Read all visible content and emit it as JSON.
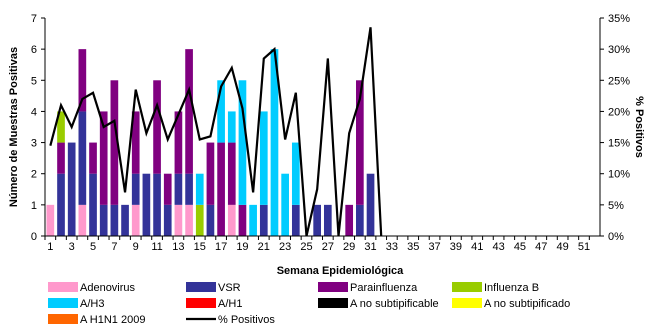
{
  "chart_data": {
    "type": "bar",
    "stacked": true,
    "xlabel": "Semana Epidemiológica",
    "ylabel": "Número de Muestras Positivas",
    "y2label": "% Positivos",
    "ylim": [
      0,
      7
    ],
    "yticks": [
      0,
      1,
      2,
      3,
      4,
      5,
      6,
      7
    ],
    "y2lim": [
      0,
      35
    ],
    "y2ticks": [
      "0%",
      "5%",
      "10%",
      "15%",
      "20%",
      "25%",
      "30%",
      "35%"
    ],
    "x": [
      1,
      2,
      3,
      4,
      5,
      6,
      7,
      8,
      9,
      10,
      11,
      12,
      13,
      14,
      15,
      16,
      17,
      18,
      19,
      20,
      21,
      22,
      23,
      24,
      25,
      26,
      27,
      28,
      29,
      30,
      31,
      32,
      33,
      34,
      35,
      36,
      37,
      38,
      39,
      40,
      41,
      42,
      43,
      44,
      45,
      46,
      47,
      48,
      49,
      50,
      51,
      52
    ],
    "xticks": [
      1,
      3,
      5,
      7,
      9,
      11,
      13,
      15,
      17,
      19,
      21,
      23,
      25,
      27,
      29,
      31,
      33,
      35,
      37,
      39,
      41,
      43,
      45,
      47,
      49,
      51
    ],
    "grid": false,
    "legend_position": "bottom",
    "series": [
      {
        "name": "Adenovirus",
        "color": "#ff99cc",
        "values": [
          1,
          0,
          0,
          1,
          0,
          0,
          0,
          0,
          1,
          0,
          0,
          0,
          1,
          1,
          0,
          0,
          0,
          1,
          0,
          0,
          0,
          0,
          0,
          0,
          0,
          0,
          0,
          0,
          0,
          0,
          0,
          0,
          0,
          0,
          0,
          0,
          0,
          0,
          0,
          0,
          0,
          0,
          0,
          0,
          0,
          0,
          0,
          0,
          0,
          0,
          0,
          0
        ]
      },
      {
        "name": "VSR",
        "color": "#333399",
        "values": [
          0,
          2,
          3,
          3,
          2,
          1,
          1,
          1,
          1,
          2,
          2,
          1,
          1,
          1,
          0,
          1,
          0,
          0,
          0,
          0,
          1,
          0,
          0,
          1,
          0,
          1,
          1,
          0,
          0,
          1,
          2,
          0,
          0,
          0,
          0,
          0,
          0,
          0,
          0,
          0,
          0,
          0,
          0,
          0,
          0,
          0,
          0,
          0,
          0,
          0,
          0,
          0
        ]
      },
      {
        "name": "Parainfluenza",
        "color": "#800080",
        "values": [
          0,
          1,
          0,
          2,
          1,
          3,
          4,
          0,
          2,
          0,
          3,
          1,
          2,
          4,
          0,
          2,
          3,
          2,
          1,
          0,
          0,
          0,
          0,
          0,
          0,
          0,
          0,
          0,
          1,
          4,
          0,
          0,
          0,
          0,
          0,
          0,
          0,
          0,
          0,
          0,
          0,
          0,
          0,
          0,
          0,
          0,
          0,
          0,
          0,
          0,
          0,
          0
        ]
      },
      {
        "name": "Influenza  B",
        "color": "#99cc00",
        "values": [
          0,
          1,
          0,
          0,
          0,
          0,
          0,
          0,
          0,
          0,
          0,
          0,
          0,
          0,
          1,
          0,
          0,
          0,
          0,
          0,
          0,
          0,
          0,
          0,
          0,
          0,
          0,
          0,
          0,
          0,
          0,
          0,
          0,
          0,
          0,
          0,
          0,
          0,
          0,
          0,
          0,
          0,
          0,
          0,
          0,
          0,
          0,
          0,
          0,
          0,
          0,
          0
        ]
      },
      {
        "name": "A/H3",
        "color": "#00ccff",
        "values": [
          0,
          0,
          0,
          0,
          0,
          0,
          0,
          0,
          0,
          0,
          0,
          0,
          0,
          0,
          1,
          0,
          2,
          1,
          4,
          1,
          3,
          6,
          2,
          2,
          0,
          0,
          0,
          0,
          0,
          0,
          0,
          0,
          0,
          0,
          0,
          0,
          0,
          0,
          0,
          0,
          0,
          0,
          0,
          0,
          0,
          0,
          0,
          0,
          0,
          0,
          0,
          0
        ]
      },
      {
        "name": "A/H1",
        "color": "#ff0000",
        "values": [
          0,
          0,
          0,
          0,
          0,
          0,
          0,
          0,
          0,
          0,
          0,
          0,
          0,
          0,
          0,
          0,
          0,
          0,
          0,
          0,
          0,
          0,
          0,
          0,
          0,
          0,
          0,
          0,
          0,
          0,
          0,
          0,
          0,
          0,
          0,
          0,
          0,
          0,
          0,
          0,
          0,
          0,
          0,
          0,
          0,
          0,
          0,
          0,
          0,
          0,
          0,
          0
        ]
      },
      {
        "name": "A no subtipificable",
        "color": "#000000",
        "values": [
          0,
          0,
          0,
          0,
          0,
          0,
          0,
          0,
          0,
          0,
          0,
          0,
          0,
          0,
          0,
          0,
          0,
          0,
          0,
          0,
          0,
          0,
          0,
          0,
          0,
          0,
          0,
          0,
          0,
          0,
          0,
          0,
          0,
          0,
          0,
          0,
          0,
          0,
          0,
          0,
          0,
          0,
          0,
          0,
          0,
          0,
          0,
          0,
          0,
          0,
          0,
          0
        ]
      },
      {
        "name": "A no subtipificado",
        "color": "#ffff00",
        "values": [
          0,
          0,
          0,
          0,
          0,
          0,
          0,
          0,
          0,
          0,
          0,
          0,
          0,
          0,
          0,
          0,
          0,
          0,
          0,
          0,
          0,
          0,
          0,
          0,
          0,
          0,
          0,
          0,
          0,
          0,
          0,
          0,
          0,
          0,
          0,
          0,
          0,
          0,
          0,
          0,
          0,
          0,
          0,
          0,
          0,
          0,
          0,
          0,
          0,
          0,
          0,
          0
        ]
      },
      {
        "name": "A H1N1 2009",
        "color": "#ff6600",
        "values": [
          0,
          0,
          0,
          0,
          0,
          0,
          0,
          0,
          0,
          0,
          0,
          0,
          0,
          0,
          0,
          0,
          0,
          0,
          0,
          0,
          0,
          0,
          0,
          0,
          0,
          0,
          0,
          0,
          0,
          0,
          0,
          0,
          0,
          0,
          0,
          0,
          0,
          0,
          0,
          0,
          0,
          0,
          0,
          0,
          0,
          0,
          0,
          0,
          0,
          0,
          0,
          0
        ]
      }
    ],
    "line_series": {
      "name": "% Positivos",
      "color": "#000000",
      "axis": "y2",
      "x": [
        1,
        2,
        3,
        4,
        5,
        6,
        7,
        8,
        9,
        10,
        11,
        12,
        13,
        14,
        15,
        16,
        17,
        18,
        19,
        20,
        21,
        22,
        23,
        24,
        25,
        26,
        27,
        28,
        29,
        30,
        31,
        32
      ],
      "values": [
        14.5,
        21,
        17.5,
        22,
        23,
        17.5,
        18.5,
        7,
        23.5,
        16.5,
        21,
        15.5,
        19.5,
        23.5,
        15.5,
        16,
        24,
        27,
        20.5,
        7,
        28.5,
        30,
        15.5,
        23,
        0,
        7.5,
        28.5,
        0,
        16.5,
        22,
        33.5,
        0
      ]
    }
  },
  "legend": [
    {
      "label": "Adenovirus",
      "color": "#ff99cc",
      "kind": "box"
    },
    {
      "label": "VSR",
      "color": "#333399",
      "kind": "box"
    },
    {
      "label": "Parainfluenza",
      "color": "#800080",
      "kind": "box"
    },
    {
      "label": "Influenza  B",
      "color": "#99cc00",
      "kind": "box"
    },
    {
      "label": "A/H3",
      "color": "#00ccff",
      "kind": "box"
    },
    {
      "label": "A/H1",
      "color": "#ff0000",
      "kind": "box"
    },
    {
      "label": "A no subtipificable",
      "color": "#000000",
      "kind": "box"
    },
    {
      "label": "A no subtipificado",
      "color": "#ffff00",
      "kind": "box"
    },
    {
      "label": "A H1N1 2009",
      "color": "#ff6600",
      "kind": "box"
    },
    {
      "label": "% Positivos",
      "color": "#000000",
      "kind": "line"
    }
  ]
}
